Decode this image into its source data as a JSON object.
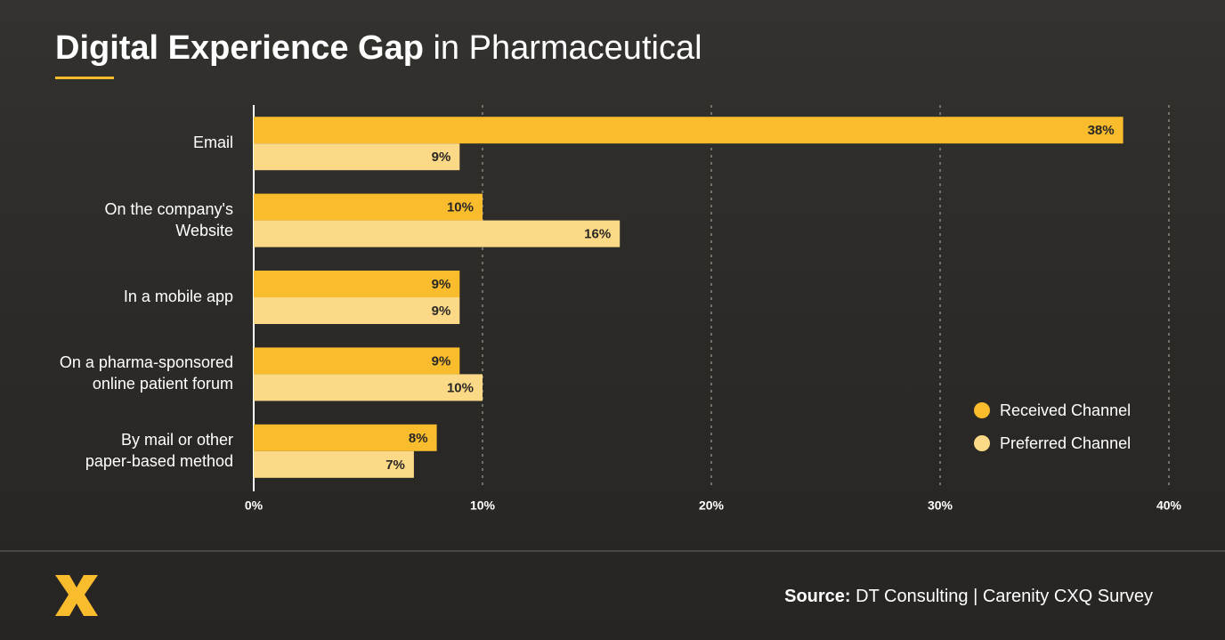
{
  "chart_data": {
    "type": "hbar",
    "title": "Digital Experience Gap",
    "title_suffix": "in Pharmaceutical",
    "categories": [
      "Email",
      "On the company's\nWebsite",
      "In a mobile app",
      "On a pharma-sponsored\nonline patient forum",
      "By mail or other\npaper-based method"
    ],
    "series": [
      {
        "name": "Received Channel",
        "color": "#f9bc2c",
        "values": [
          38,
          10,
          9,
          9,
          8
        ],
        "value_labels": [
          "38%",
          "10%",
          "9%",
          "9%",
          "8%"
        ]
      },
      {
        "name": "Preferred Channel",
        "color": "#fcd986",
        "values": [
          9,
          16,
          9,
          10,
          7
        ],
        "value_labels": [
          "9%",
          "16%",
          "9%",
          "10%",
          "7%"
        ]
      }
    ],
    "xlim": [
      0,
      40
    ],
    "xticks": [
      {
        "value": 0,
        "label": "0%"
      },
      {
        "value": 10,
        "label": "10%"
      },
      {
        "value": 20,
        "label": "20%"
      },
      {
        "value": 30,
        "label": "30%"
      },
      {
        "value": 40,
        "label": "40%"
      }
    ],
    "grid": true,
    "legend": "lower-right",
    "source_label": "Source:",
    "source": "DT Consulting | Carenity CXQ Survey"
  }
}
